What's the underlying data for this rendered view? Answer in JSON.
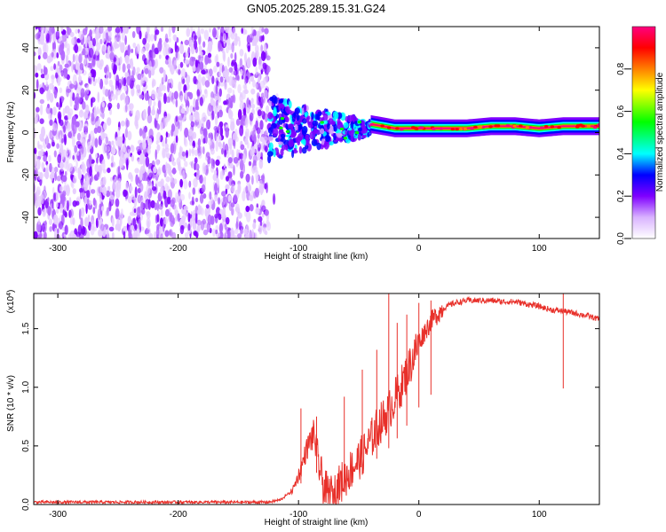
{
  "title": "GN05.2025.289.15.31.G24",
  "chart_data": [
    {
      "type": "heatmap",
      "name": "spectrogram",
      "xlabel": "Height of straight line (km)",
      "ylabel": "Frequency (Hz)",
      "xlim": [
        -320,
        150
      ],
      "ylim": [
        -50,
        50
      ],
      "xticks": [
        -300,
        -200,
        -100,
        0,
        100
      ],
      "yticks": [
        -40,
        -20,
        0,
        20,
        40
      ],
      "colorbar": {
        "label": "Normalized spectral amplitude",
        "range": [
          0,
          1
        ],
        "ticks": [
          0.0,
          0.2,
          0.4,
          0.6,
          0.8
        ],
        "tick_labels": [
          "0.0",
          "0.2",
          "0.4",
          "0.6",
          "0.8"
        ],
        "colormap": [
          "#ffffff",
          "#cc99ff",
          "#7f00ff",
          "#0000ff",
          "#00ffff",
          "#00ff00",
          "#ffff00",
          "#ff8000",
          "#ff0000",
          "#ff0080"
        ]
      },
      "regions": [
        {
          "x": [
            -320,
            -125
          ],
          "description": "broadband noise, amplitude about 0.05 to 0.2"
        },
        {
          "x": [
            -125,
            -40
          ],
          "description": "signal emerging near 0 Hz, spread +/-10 Hz, amplitude 0.3 to 0.5"
        },
        {
          "x": [
            -40,
            150
          ],
          "description": "narrow line near 2 to 3 Hz, amplitude near 1.0"
        }
      ],
      "ridge": {
        "x": [
          -120,
          -100,
          -80,
          -60,
          -40,
          -20,
          0,
          20,
          40,
          60,
          80,
          100,
          120,
          150
        ],
        "freq": [
          2,
          4,
          3,
          1,
          4,
          2,
          2,
          2,
          2,
          3,
          3,
          2,
          3,
          3
        ]
      }
    },
    {
      "type": "line",
      "name": "snr",
      "xlabel": "Height of straight line (km)",
      "ylabel": "SNR (10 * v/v)",
      "multiplier": "(x10",
      "multiplier_exp": "4",
      "multiplier_close": ")",
      "xlim": [
        -320,
        150
      ],
      "ylim": [
        0,
        1.8
      ],
      "xticks": [
        -300,
        -200,
        -100,
        0,
        100
      ],
      "yticks": [
        0.0,
        0.5,
        1.0,
        1.5
      ],
      "ytick_labels": [
        "0.0",
        "0.5",
        "1.0",
        "1.5"
      ],
      "color": "#e8302a",
      "series": [
        {
          "name": "SNR",
          "x": [
            -320,
            -250,
            -200,
            -150,
            -125,
            -115,
            -105,
            -98,
            -94,
            -90,
            -87,
            -85,
            -82,
            -78,
            -74,
            -70,
            -65,
            -60,
            -55,
            -50,
            -45,
            -40,
            -35,
            -30,
            -25,
            -20,
            -15,
            -10,
            -5,
            0,
            5,
            10,
            15,
            20,
            25,
            30,
            35,
            40,
            50,
            60,
            70,
            80,
            90,
            100,
            110,
            120,
            130,
            140,
            150
          ],
          "y": [
            0.02,
            0.02,
            0.02,
            0.02,
            0.02,
            0.04,
            0.12,
            0.3,
            0.45,
            0.55,
            0.6,
            0.45,
            0.28,
            0.12,
            0.08,
            0.1,
            0.18,
            0.25,
            0.32,
            0.38,
            0.45,
            0.55,
            0.65,
            0.72,
            0.8,
            0.9,
            1.0,
            1.12,
            1.25,
            1.38,
            1.48,
            1.56,
            1.62,
            1.67,
            1.7,
            1.72,
            1.73,
            1.74,
            1.74,
            1.74,
            1.73,
            1.73,
            1.71,
            1.69,
            1.66,
            1.65,
            1.63,
            1.61,
            1.58
          ]
        }
      ],
      "spikes": [
        {
          "x": -98,
          "y": 0.82
        },
        {
          "x": -85,
          "y": 0.75
        },
        {
          "x": -62,
          "y": 0.92
        },
        {
          "x": -47,
          "y": 1.15
        },
        {
          "x": -35,
          "y": 1.32
        },
        {
          "x": -25,
          "y": 1.8
        },
        {
          "x": -18,
          "y": 1.55
        },
        {
          "x": -10,
          "y": 1.62
        },
        {
          "x": 0,
          "y": 1.72
        },
        {
          "x": 10,
          "y": 1.74
        },
        {
          "x": 120,
          "y": 1.8
        }
      ]
    }
  ]
}
